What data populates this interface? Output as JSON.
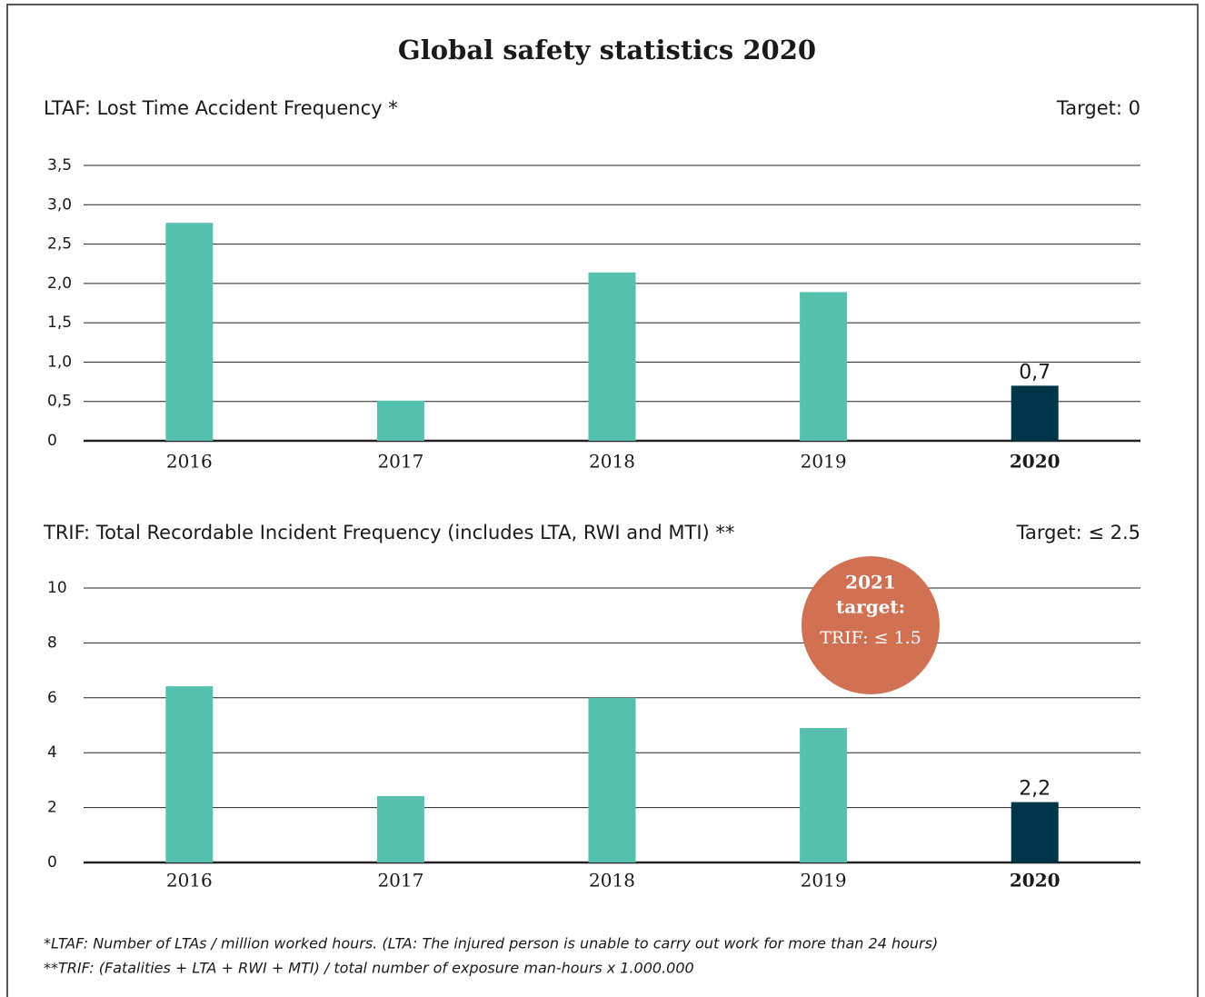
{
  "title": "Global safety statistics 2020",
  "chart_data": [
    {
      "type": "bar",
      "title": "LTAF: Lost Time Accident Frequency *",
      "annotation": "Target: 0",
      "categories": [
        "2016",
        "2017",
        "2018",
        "2019",
        "2020"
      ],
      "values": [
        2.77,
        0.51,
        2.14,
        1.89,
        0.7
      ],
      "value_labels": [
        null,
        null,
        null,
        null,
        "0,7"
      ],
      "colors": [
        "#55c1ad",
        "#55c1ad",
        "#55c1ad",
        "#55c1ad",
        "#003547"
      ],
      "ylim": [
        0,
        3.5
      ],
      "yticks": [
        0,
        {
          "value": 0.5,
          "label": "0,5"
        },
        {
          "value": 1,
          "label": "1,0"
        },
        {
          "value": 1.5,
          "label": "1,5"
        },
        {
          "value": 2,
          "label": "2,0"
        },
        {
          "value": 2.5,
          "label": "2,5"
        },
        {
          "value": 3,
          "label": "3,0"
        },
        {
          "value": 3.5,
          "label": "3,5"
        }
      ],
      "grid": true
    },
    {
      "type": "bar",
      "title": "TRIF: Total Recordable Incident Frequency (includes LTA, RWI and MTI) **",
      "annotation": "Target: ≤ 2.5",
      "badge": {
        "line1": "2021",
        "line2": "target:",
        "line3": "TRIF: ≤ 1.5",
        "color": "#d07153"
      },
      "categories": [
        "2016",
        "2017",
        "2018",
        "2019",
        "2020"
      ],
      "values": [
        6.42,
        2.42,
        6.0,
        4.9,
        2.2
      ],
      "value_labels": [
        null,
        null,
        null,
        null,
        "2,2"
      ],
      "colors": [
        "#55c1ad",
        "#55c1ad",
        "#55c1ad",
        "#55c1ad",
        "#003547"
      ],
      "ylim": [
        0,
        10
      ],
      "yticks": [
        0,
        2,
        4,
        6,
        8,
        10
      ],
      "grid": true
    }
  ],
  "footnotes": [
    "*LTAF:  Number of LTAs / million worked hours. (LTA: The injured person is unable to carry out work for more than 24 hours)",
    "**TRIF: (Fatalities + LTA + RWI + MTI) / total number of exposure man-hours x 1.000.000"
  ]
}
